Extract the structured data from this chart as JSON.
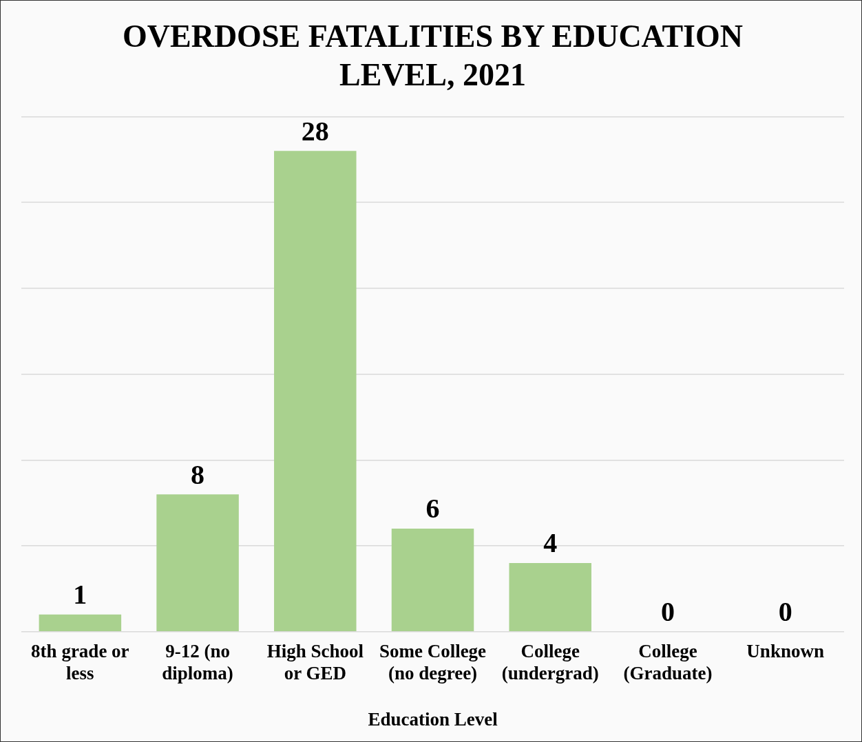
{
  "chart_data": {
    "type": "bar",
    "title": "OVERDOSE FATALITIES BY EDUCATION LEVEL, 2021",
    "xlabel": "Education Level",
    "categories": [
      "8th grade or less",
      "9-12 (no diploma)",
      "High School or GED",
      "Some College (no degree)",
      "College (undergrad)",
      "College (Graduate)",
      "Unknown"
    ],
    "values": [
      1,
      8,
      28,
      6,
      4,
      0,
      0
    ],
    "color": "#a9d18e",
    "ylim": [
      0,
      30
    ],
    "yticks": [
      {
        "value": 0,
        "label": null
      },
      {
        "value": 5,
        "label": null
      },
      {
        "value": 10,
        "label": null
      },
      {
        "value": 15,
        "label": null
      },
      {
        "value": 20,
        "label": null
      },
      {
        "value": 25,
        "label": null
      },
      {
        "value": 30,
        "label": null
      }
    ],
    "grid": "y",
    "tick_labels": "x",
    "data_labels": true,
    "legend": false
  }
}
